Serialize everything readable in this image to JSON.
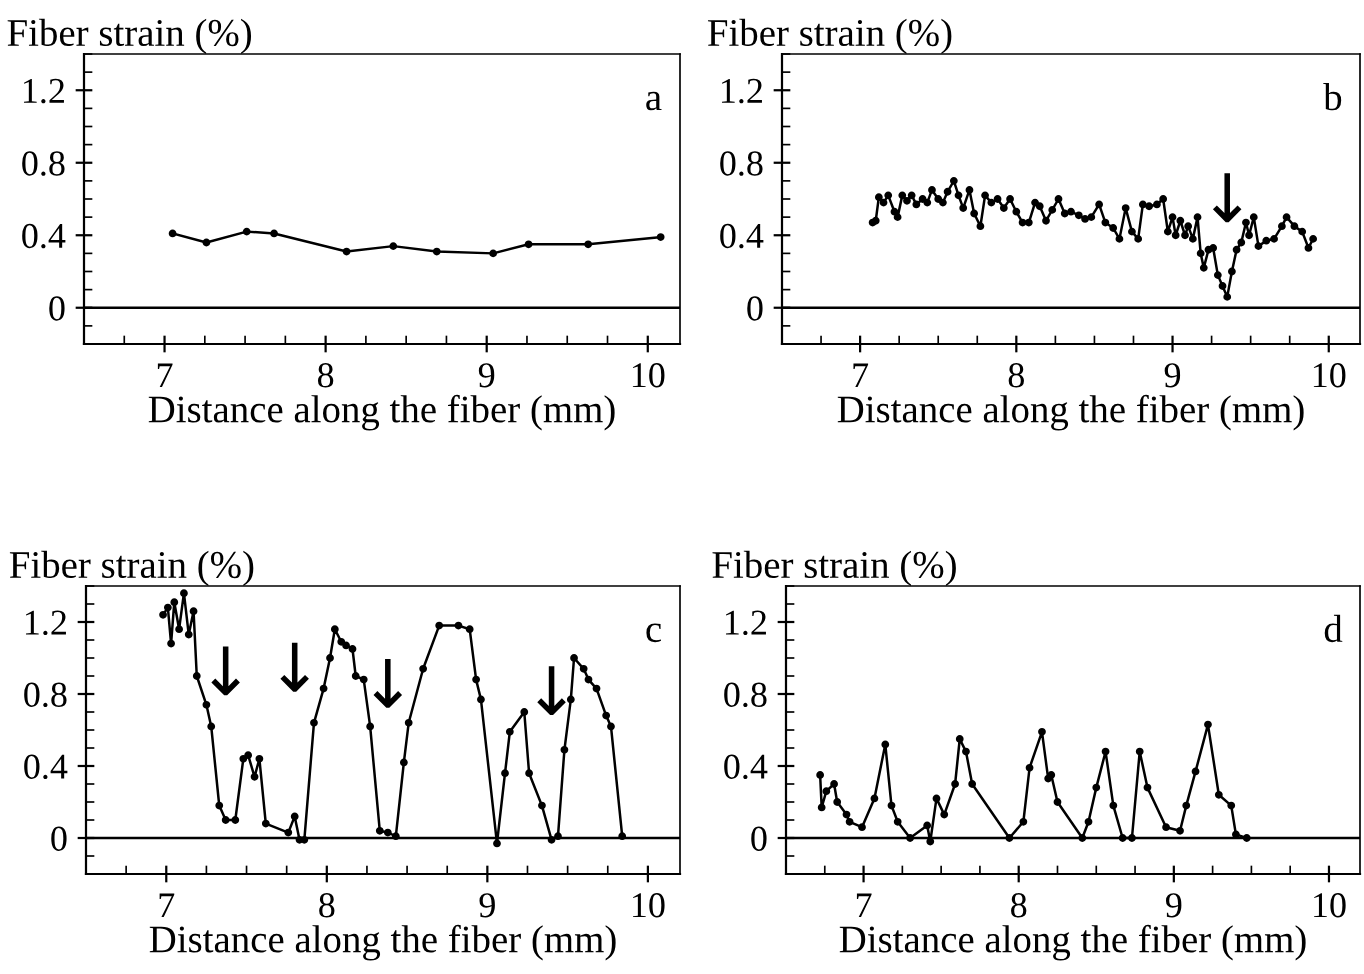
{
  "chart_data": [
    {
      "type": "line",
      "xlabel": "Distance along the fiber (mm)",
      "ylabel": "Fiber strain (%)",
      "color": "#000000",
      "marker": "circle",
      "line_style": "solid",
      "grid": false,
      "legend": false,
      "xlim": [
        6.5,
        10.2
      ],
      "ylim": [
        -0.2,
        1.4
      ],
      "xticks": [
        7,
        8,
        9,
        10
      ],
      "yticks": [
        0,
        0.4,
        0.8,
        1.2
      ],
      "ref_lines": [
        {
          "axis": "y",
          "value": 0,
          "color": "#000000"
        }
      ],
      "annotations": [
        "a"
      ],
      "x": [
        7.05,
        7.26,
        7.51,
        7.68,
        8.13,
        8.42,
        8.69,
        9.04,
        9.26,
        9.63,
        10.08
      ],
      "values": [
        0.41,
        0.36,
        0.42,
        0.41,
        0.31,
        0.34,
        0.31,
        0.3,
        0.35,
        0.35,
        0.39
      ]
    },
    {
      "type": "line",
      "xlabel": "Distance along the fiber (mm)",
      "ylabel": "Fiber strain (%)",
      "color": "#000000",
      "marker": "circle",
      "line_style": "solid",
      "grid": false,
      "legend": false,
      "xlim": [
        6.5,
        10.2
      ],
      "ylim": [
        -0.2,
        1.4
      ],
      "xticks": [
        7,
        8,
        9,
        10
      ],
      "yticks": [
        0,
        0.4,
        0.8,
        1.2
      ],
      "ref_lines": [
        {
          "axis": "y",
          "value": 0,
          "color": "#000000"
        }
      ],
      "annotations": [
        "b",
        {
          "text": "↓",
          "x": 9.35,
          "y": 0.06
        }
      ],
      "x": [
        7.08,
        7.1,
        7.12,
        7.15,
        7.18,
        7.22,
        7.24,
        7.27,
        7.3,
        7.33,
        7.36,
        7.4,
        7.43,
        7.46,
        7.5,
        7.53,
        7.56,
        7.6,
        7.63,
        7.66,
        7.7,
        7.73,
        7.77,
        7.8,
        7.84,
        7.88,
        7.92,
        7.96,
        8.0,
        8.04,
        8.08,
        8.12,
        8.15,
        8.19,
        8.23,
        8.27,
        8.31,
        8.35,
        8.4,
        8.44,
        8.48,
        8.53,
        8.57,
        8.62,
        8.66,
        8.7,
        8.74,
        8.78,
        8.81,
        8.85,
        8.9,
        8.94,
        8.97,
        9.0,
        9.02,
        9.05,
        9.08,
        9.1,
        9.13,
        9.16,
        9.18,
        9.2,
        9.23,
        9.26,
        9.29,
        9.32,
        9.35,
        9.38,
        9.41,
        9.44,
        9.47,
        9.49,
        9.52,
        9.55,
        9.6,
        9.65,
        9.7,
        9.73,
        9.78,
        9.83,
        9.87,
        9.9
      ],
      "values": [
        0.47,
        0.48,
        0.61,
        0.58,
        0.62,
        0.53,
        0.5,
        0.62,
        0.59,
        0.62,
        0.57,
        0.6,
        0.58,
        0.65,
        0.6,
        0.58,
        0.64,
        0.7,
        0.62,
        0.55,
        0.65,
        0.52,
        0.45,
        0.62,
        0.58,
        0.6,
        0.55,
        0.6,
        0.53,
        0.47,
        0.47,
        0.58,
        0.56,
        0.48,
        0.54,
        0.6,
        0.52,
        0.53,
        0.51,
        0.49,
        0.5,
        0.57,
        0.47,
        0.44,
        0.38,
        0.55,
        0.42,
        0.38,
        0.57,
        0.56,
        0.57,
        0.6,
        0.42,
        0.5,
        0.4,
        0.48,
        0.4,
        0.45,
        0.38,
        0.5,
        0.3,
        0.22,
        0.32,
        0.33,
        0.18,
        0.12,
        0.06,
        0.2,
        0.32,
        0.36,
        0.47,
        0.4,
        0.5,
        0.34,
        0.37,
        0.38,
        0.45,
        0.5,
        0.45,
        0.42,
        0.33,
        0.38
      ]
    },
    {
      "type": "line",
      "xlabel": "Distance along the fiber (mm)",
      "ylabel": "Fiber strain (%)",
      "color": "#000000",
      "marker": "circle",
      "line_style": "solid",
      "grid": false,
      "legend": false,
      "xlim": [
        6.5,
        10.2
      ],
      "ylim": [
        -0.2,
        1.4
      ],
      "xticks": [
        7,
        8,
        9,
        10
      ],
      "yticks": [
        0,
        0.4,
        0.8,
        1.2
      ],
      "ref_lines": [
        {
          "axis": "y",
          "value": 0,
          "color": "#000000"
        }
      ],
      "annotations": [
        "c",
        {
          "text": "↓",
          "x": 7.37,
          "y": 0.1
        },
        {
          "text": "↓",
          "x": 7.8,
          "y": 0.12
        },
        {
          "text": "↓",
          "x": 8.38,
          "y": 0.03
        },
        {
          "text": "↓",
          "x": 9.4,
          "y": -0.01
        }
      ],
      "x": [
        6.98,
        7.01,
        7.03,
        7.05,
        7.08,
        7.11,
        7.14,
        7.17,
        7.19,
        7.25,
        7.28,
        7.33,
        7.37,
        7.43,
        7.48,
        7.51,
        7.55,
        7.58,
        7.62,
        7.76,
        7.8,
        7.83,
        7.86,
        7.92,
        7.98,
        8.02,
        8.05,
        8.09,
        8.12,
        8.16,
        8.18,
        8.23,
        8.27,
        8.33,
        8.38,
        8.43,
        8.48,
        8.51,
        8.6,
        8.7,
        8.82,
        8.89,
        8.93,
        8.96,
        9.06,
        9.11,
        9.14,
        9.23,
        9.26,
        9.34,
        9.4,
        9.44,
        9.48,
        9.52,
        9.54,
        9.6,
        9.63,
        9.68,
        9.74,
        9.77,
        9.84
      ],
      "values": [
        1.24,
        1.28,
        1.08,
        1.31,
        1.16,
        1.36,
        1.13,
        1.26,
        0.9,
        0.74,
        0.62,
        0.18,
        0.1,
        0.1,
        0.44,
        0.46,
        0.34,
        0.44,
        0.08,
        0.03,
        0.12,
        -0.01,
        -0.01,
        0.64,
        0.83,
        1.0,
        1.16,
        1.09,
        1.07,
        1.05,
        0.9,
        0.88,
        0.62,
        0.04,
        0.03,
        0.01,
        0.42,
        0.64,
        0.94,
        1.18,
        1.18,
        1.16,
        0.88,
        0.77,
        -0.03,
        0.36,
        0.59,
        0.7,
        0.36,
        0.18,
        -0.01,
        0.01,
        0.49,
        0.77,
        1.0,
        0.94,
        0.88,
        0.83,
        0.68,
        0.62,
        0.01
      ]
    },
    {
      "type": "line",
      "xlabel": "Distance along the fiber (mm)",
      "ylabel": "Fiber strain (%)",
      "color": "#000000",
      "marker": "circle",
      "line_style": "solid",
      "grid": false,
      "legend": false,
      "xlim": [
        6.5,
        10.2
      ],
      "ylim": [
        -0.2,
        1.4
      ],
      "xticks": [
        7,
        8,
        9,
        10
      ],
      "yticks": [
        0,
        0.4,
        0.8,
        1.2
      ],
      "ref_lines": [
        {
          "axis": "y",
          "value": 0,
          "color": "#000000"
        }
      ],
      "annotations": [
        "d"
      ],
      "x": [
        6.72,
        6.73,
        6.76,
        6.81,
        6.83,
        6.89,
        6.91,
        6.99,
        7.07,
        7.14,
        7.18,
        7.22,
        7.3,
        7.41,
        7.43,
        7.47,
        7.52,
        7.59,
        7.62,
        7.66,
        7.7,
        7.94,
        8.03,
        8.07,
        8.15,
        8.19,
        8.21,
        8.25,
        8.41,
        8.45,
        8.5,
        8.56,
        8.61,
        8.67,
        8.73,
        8.78,
        8.83,
        8.95,
        9.04,
        9.08,
        9.14,
        9.22,
        9.29,
        9.37,
        9.4,
        9.47
      ],
      "values": [
        0.35,
        0.17,
        0.26,
        0.3,
        0.2,
        0.13,
        0.09,
        0.06,
        0.22,
        0.52,
        0.18,
        0.09,
        0.0,
        0.07,
        -0.02,
        0.22,
        0.13,
        0.3,
        0.55,
        0.48,
        0.3,
        0.0,
        0.09,
        0.39,
        0.59,
        0.33,
        0.35,
        0.2,
        0.0,
        0.09,
        0.28,
        0.48,
        0.18,
        0.0,
        0.0,
        0.48,
        0.28,
        0.06,
        0.04,
        0.18,
        0.37,
        0.63,
        0.24,
        0.18,
        0.02,
        0.0
      ]
    }
  ]
}
